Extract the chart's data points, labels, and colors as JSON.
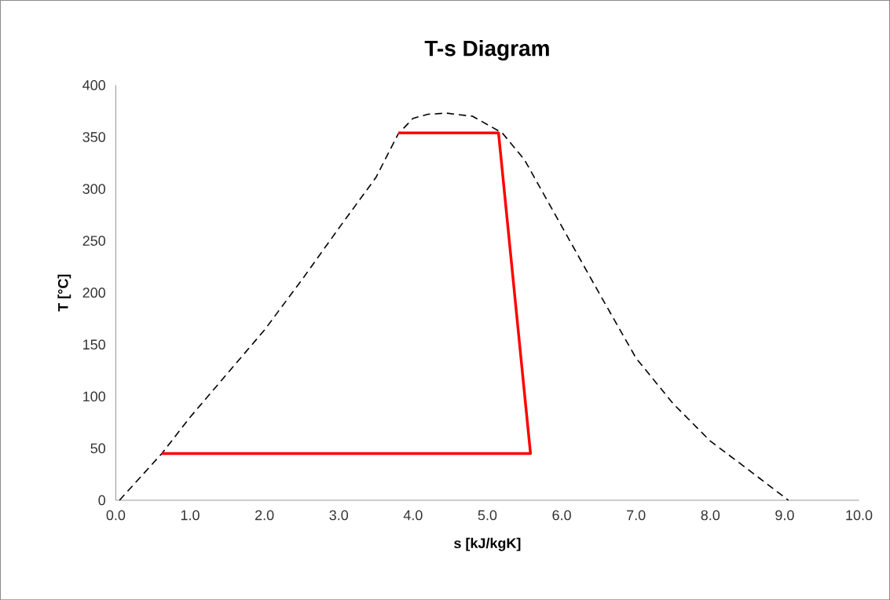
{
  "chart_data": {
    "type": "line",
    "title": "T-s Diagram",
    "xlabel": "s [kJ/kgK]",
    "ylabel": "T [°C]",
    "xlim": [
      0,
      10
    ],
    "ylim": [
      0,
      400
    ],
    "xticks": [
      {
        "value": 0,
        "label": "0.0"
      },
      {
        "value": 1,
        "label": "1.0"
      },
      {
        "value": 2,
        "label": "2.0"
      },
      {
        "value": 3,
        "label": "3.0"
      },
      {
        "value": 4,
        "label": "4.0"
      },
      {
        "value": 5,
        "label": "5.0"
      },
      {
        "value": 6,
        "label": "6.0"
      },
      {
        "value": 7,
        "label": "7.0"
      },
      {
        "value": 8,
        "label": "8.0"
      },
      {
        "value": 9,
        "label": "9.0"
      },
      {
        "value": 10,
        "label": "10.0"
      }
    ],
    "yticks": [
      0,
      50,
      100,
      150,
      200,
      250,
      300,
      350,
      400
    ],
    "grid": false,
    "marker": "none",
    "series": [
      {
        "line_style": "dashed",
        "color": "#000000",
        "x": [
          0.05,
          0.62,
          1.0,
          1.5,
          2.0,
          2.5,
          3.0,
          3.5,
          3.8,
          4.0,
          4.2,
          4.45,
          4.8,
          5.2,
          5.5,
          6.0,
          6.5,
          7.0,
          7.5,
          8.0,
          8.5,
          9.05
        ],
        "values": [
          0,
          45,
          80,
          122,
          164,
          212,
          262,
          311,
          353,
          368,
          372,
          373,
          370,
          354,
          328,
          264,
          200,
          137,
          93,
          57,
          30,
          0
        ]
      },
      {
        "line_style": "solid",
        "color": "#ff0000",
        "x": [
          0.62,
          5.58,
          5.15,
          3.8
        ],
        "values": [
          45,
          45,
          354,
          354
        ]
      }
    ]
  }
}
